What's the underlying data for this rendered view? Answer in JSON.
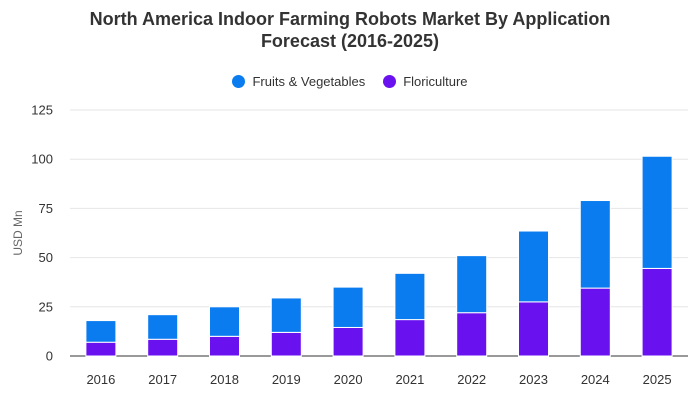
{
  "chart_data": {
    "type": "bar",
    "stacked": true,
    "title_lines": [
      "North America Indoor Farming Robots Market By Application",
      "Forecast (2016-2025)"
    ],
    "title": "North America Indoor Farming Robots Market By Application Forecast (2016-2025)",
    "xlabel": "",
    "ylabel": "USD Mn",
    "ylim": [
      0,
      125
    ],
    "yticks": [
      0,
      25,
      50,
      75,
      100,
      125
    ],
    "grid": true,
    "legend_position": "top",
    "categories": [
      "2016",
      "2017",
      "2018",
      "2019",
      "2020",
      "2021",
      "2022",
      "2023",
      "2024",
      "2025"
    ],
    "series": [
      {
        "name": "Floriculture",
        "color": "#6a11f0",
        "values": [
          7,
          8.5,
          10,
          12,
          14.5,
          18.5,
          22,
          27.5,
          34.5,
          44.5
        ]
      },
      {
        "name": "Fruits & Vegetables",
        "color": "#0a7cf0",
        "values": [
          11,
          12.5,
          15,
          17.5,
          20.5,
          23.5,
          29,
          36,
          44.5,
          57
        ]
      }
    ],
    "legend": [
      {
        "name": "Fruits & Vegetables",
        "color": "#0a7cf0"
      },
      {
        "name": "Floriculture",
        "color": "#6a11f0"
      }
    ]
  }
}
